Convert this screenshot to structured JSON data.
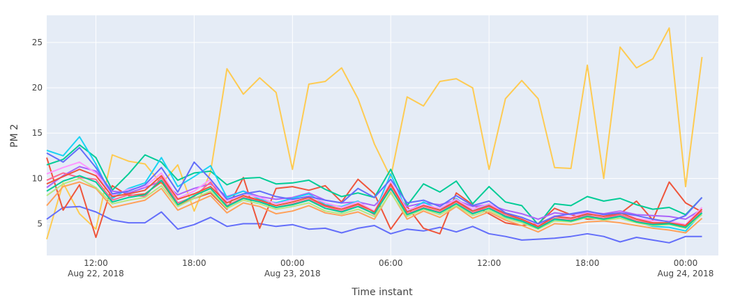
{
  "chart_data": {
    "type": "line",
    "xlabel": "Time instant",
    "ylabel": "PM 2",
    "x_start": "2018-08-22T09:00",
    "x_step_hours": 1,
    "xlim": [
      "2018-08-22T09:00",
      "2018-08-24T02:00"
    ],
    "ylim": [
      1.5,
      28
    ],
    "grid": true,
    "background": "#E5ECF6",
    "x_ticks": [
      {
        "t": "2018-08-22T12:00",
        "label": "12:00",
        "sublabel": "Aug 22, 2018"
      },
      {
        "t": "2018-08-22T18:00",
        "label": "18:00",
        "sublabel": ""
      },
      {
        "t": "2018-08-23T00:00",
        "label": "00:00",
        "sublabel": "Aug 23, 2018"
      },
      {
        "t": "2018-08-23T06:00",
        "label": "06:00",
        "sublabel": ""
      },
      {
        "t": "2018-08-23T12:00",
        "label": "12:00",
        "sublabel": ""
      },
      {
        "t": "2018-08-23T18:00",
        "label": "18:00",
        "sublabel": ""
      },
      {
        "t": "2018-08-24T00:00",
        "label": "00:00",
        "sublabel": "Aug 24, 2018"
      }
    ],
    "y_ticks": [
      5,
      10,
      15,
      20,
      25
    ],
    "series": [
      {
        "color": "#FECB52",
        "values": [
          3.3,
          9.5,
          6.1,
          4.4,
          12.6,
          11.9,
          11.6,
          9.4,
          11.5,
          6.4,
          10.7,
          22.1,
          19.3,
          21.1,
          19.5,
          11.0,
          20.4,
          20.7,
          22.2,
          18.8,
          13.8,
          10.1,
          19.0,
          18.0,
          20.7,
          21.0,
          20.0,
          11.0,
          18.8,
          20.8,
          18.8,
          11.2,
          11.1,
          22.5,
          10.0,
          24.5,
          22.2,
          23.2,
          26.6,
          9.1,
          23.4
        ]
      },
      {
        "color": "#636EFA",
        "values": [
          5.5,
          6.8,
          6.9,
          6.3,
          5.4,
          5.1,
          5.1,
          6.3,
          4.4,
          4.9,
          5.7,
          4.7,
          5.0,
          5.0,
          4.7,
          4.9,
          4.4,
          4.5,
          4.0,
          4.5,
          4.8,
          3.9,
          4.4,
          4.2,
          4.6,
          4.1,
          4.7,
          3.9,
          3.6,
          3.2,
          3.3,
          3.4,
          3.6,
          3.9,
          3.6,
          3.0,
          3.5,
          3.2,
          2.9,
          3.6,
          3.6
        ]
      },
      {
        "color": "#EF553B",
        "values": [
          12.3,
          6.5,
          9.3,
          3.5,
          9.2,
          8.1,
          8.3,
          9.6,
          7.1,
          7.8,
          8.4,
          6.6,
          10.1,
          4.5,
          8.9,
          9.1,
          8.7,
          9.2,
          7.4,
          9.9,
          8.3,
          4.4,
          6.9,
          4.5,
          3.9,
          8.4,
          7.1,
          6.1,
          5.1,
          4.8,
          5.0,
          6.7,
          6.0,
          5.5,
          5.6,
          6.1,
          7.5,
          5.4,
          9.6,
          7.3,
          6.3
        ]
      },
      {
        "color": "#00CC96",
        "values": [
          11.5,
          12.1,
          13.7,
          12.3,
          8.7,
          10.5,
          12.6,
          11.8,
          9.8,
          10.6,
          10.8,
          9.3,
          10.0,
          10.1,
          9.4,
          9.5,
          9.8,
          8.8,
          8.0,
          8.4,
          7.9,
          11.0,
          7.0,
          9.4,
          8.5,
          9.7,
          7.2,
          9.1,
          7.4,
          7.0,
          4.9,
          7.2,
          7.0,
          8.0,
          7.5,
          7.8,
          7.1,
          6.6,
          6.8,
          6.0,
          7.9
        ]
      },
      {
        "color": "#AB63FA",
        "values": [
          9.0,
          10.3,
          11.3,
          10.8,
          8.6,
          8.4,
          9.0,
          9.7,
          8.2,
          8.9,
          9.4,
          8.0,
          8.6,
          8.0,
          7.7,
          7.9,
          8.4,
          7.6,
          7.3,
          7.4,
          7.0,
          8.8,
          6.9,
          7.3,
          7.1,
          7.6,
          6.9,
          7.1,
          6.5,
          6.1,
          5.5,
          6.2,
          6.0,
          6.3,
          6.1,
          6.4,
          6.0,
          5.9,
          5.8,
          5.5,
          6.6
        ]
      },
      {
        "color": "#FFA15A",
        "values": [
          7.0,
          9.1,
          9.6,
          8.9,
          6.8,
          7.2,
          7.6,
          8.9,
          6.5,
          7.3,
          8.1,
          6.2,
          7.3,
          6.9,
          6.1,
          6.4,
          7.0,
          6.2,
          5.9,
          6.3,
          5.5,
          8.5,
          5.5,
          6.4,
          5.7,
          6.9,
          5.6,
          6.3,
          5.4,
          4.8,
          4.1,
          5.0,
          4.9,
          5.2,
          5.3,
          5.1,
          4.8,
          4.5,
          4.3,
          4.0,
          5.6
        ]
      },
      {
        "color": "#19D3F3",
        "values": [
          13.1,
          12.5,
          14.6,
          11.6,
          7.8,
          8.9,
          9.5,
          12.3,
          9.1,
          10.2,
          11.4,
          7.9,
          8.6,
          7.7,
          7.3,
          7.8,
          8.3,
          7.1,
          6.9,
          7.5,
          6.2,
          10.5,
          6.3,
          7.4,
          6.5,
          7.8,
          6.4,
          7.1,
          5.7,
          5.2,
          4.5,
          5.4,
          5.3,
          6.0,
          5.4,
          5.9,
          5.2,
          4.7,
          4.6,
          4.2,
          6.2
        ]
      },
      {
        "color": "#FF6692",
        "values": [
          9.8,
          10.6,
          10.1,
          9.9,
          7.6,
          8.2,
          8.0,
          10.1,
          7.3,
          8.0,
          9.6,
          7.0,
          7.9,
          7.5,
          6.8,
          7.2,
          7.7,
          6.9,
          6.4,
          7.1,
          6.0,
          9.2,
          6.1,
          6.8,
          6.3,
          7.4,
          6.2,
          6.9,
          5.9,
          5.4,
          4.6,
          5.6,
          5.4,
          5.9,
          5.6,
          6.0,
          5.3,
          5.0,
          5.1,
          4.7,
          6.4
        ]
      },
      {
        "color": "#B6E880",
        "values": [
          8.1,
          9.4,
          10.0,
          9.0,
          7.2,
          7.6,
          7.9,
          9.2,
          6.9,
          7.8,
          8.6,
          6.7,
          7.6,
          7.2,
          6.6,
          6.9,
          7.3,
          6.4,
          6.1,
          6.6,
          5.8,
          8.4,
          5.8,
          6.6,
          6.0,
          7.0,
          5.9,
          6.5,
          5.6,
          5.1,
          4.4,
          5.3,
          5.2,
          5.7,
          5.4,
          5.6,
          5.1,
          4.8,
          4.9,
          4.5,
          6.0
        ]
      },
      {
        "color": "#FF97FF",
        "values": [
          10.5,
          11.2,
          11.8,
          10.6,
          8.1,
          8.8,
          9.1,
          10.6,
          7.8,
          8.6,
          9.9,
          7.5,
          8.3,
          7.9,
          7.2,
          7.6,
          8.1,
          7.3,
          6.8,
          7.4,
          6.4,
          9.6,
          6.5,
          7.1,
          6.7,
          7.7,
          6.6,
          7.2,
          6.2,
          5.7,
          4.9,
          5.9,
          5.7,
          6.2,
          5.9,
          6.3,
          5.6,
          5.3,
          5.3,
          4.9,
          6.8
        ]
      },
      {
        "color": "#EF553B",
        "values": [
          9.4,
          10.2,
          11.0,
          10.3,
          8.0,
          8.3,
          8.7,
          10.3,
          7.7,
          8.3,
          9.1,
          7.3,
          8.1,
          7.6,
          7.0,
          7.4,
          7.9,
          7.0,
          6.6,
          7.2,
          6.3,
          9.4,
          6.3,
          7.0,
          6.5,
          7.5,
          6.4,
          7.0,
          6.1,
          5.5,
          4.7,
          5.8,
          5.6,
          6.1,
          5.8,
          6.2,
          5.5,
          5.1,
          5.1,
          4.8,
          6.6
        ]
      },
      {
        "color": "#636EFA",
        "values": [
          12.8,
          11.8,
          13.4,
          11.2,
          8.3,
          8.6,
          9.3,
          11.2,
          8.5,
          11.8,
          9.9,
          7.7,
          8.3,
          8.6,
          8.0,
          7.7,
          8.0,
          7.6,
          7.3,
          8.9,
          7.9,
          9.9,
          7.3,
          7.6,
          6.9,
          8.1,
          7.0,
          7.5,
          6.2,
          5.7,
          5.0,
          5.8,
          6.1,
          6.4,
          6.0,
          6.2,
          5.9,
          5.5,
          5.2,
          5.9,
          7.9
        ]
      },
      {
        "color": "#00CC96",
        "values": [
          8.6,
          9.7,
          10.3,
          9.6,
          7.4,
          7.9,
          8.2,
          9.8,
          7.1,
          8.1,
          8.9,
          6.9,
          7.8,
          7.4,
          6.8,
          7.1,
          7.6,
          6.7,
          6.3,
          6.9,
          6.1,
          8.9,
          6.0,
          6.7,
          6.2,
          7.2,
          6.1,
          6.7,
          5.8,
          5.3,
          4.5,
          5.5,
          5.3,
          5.8,
          5.5,
          5.8,
          5.2,
          4.9,
          5.0,
          4.6,
          6.2
        ]
      }
    ]
  }
}
